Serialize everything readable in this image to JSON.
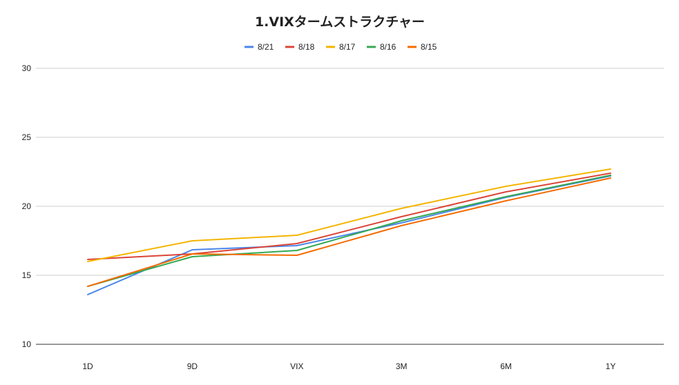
{
  "chart_data": {
    "type": "line",
    "title": "1.VIXタームストラクチャー",
    "xlabel": "",
    "ylabel": "",
    "categories": [
      "1D",
      "9D",
      "VIX",
      "3M",
      "6M",
      "1Y"
    ],
    "ylim": [
      10,
      30
    ],
    "yticks": [
      10,
      15,
      20,
      25,
      30
    ],
    "grid": true,
    "legend_position": "top",
    "series": [
      {
        "name": "8/21",
        "color": "#4a86e8",
        "values": [
          13.6,
          16.85,
          17.15,
          18.8,
          20.65,
          22.2
        ]
      },
      {
        "name": "8/18",
        "color": "#db4437",
        "values": [
          16.15,
          16.55,
          17.3,
          19.25,
          21.05,
          22.4
        ]
      },
      {
        "name": "8/17",
        "color": "#f4b400",
        "values": [
          16.0,
          17.5,
          17.9,
          19.85,
          21.45,
          22.7
        ]
      },
      {
        "name": "8/16",
        "color": "#34a853",
        "values": [
          14.2,
          16.35,
          16.8,
          18.95,
          20.7,
          22.25
        ]
      },
      {
        "name": "8/15",
        "color": "#f56b00",
        "values": [
          14.2,
          16.55,
          16.45,
          18.6,
          20.4,
          22.05
        ]
      }
    ]
  }
}
